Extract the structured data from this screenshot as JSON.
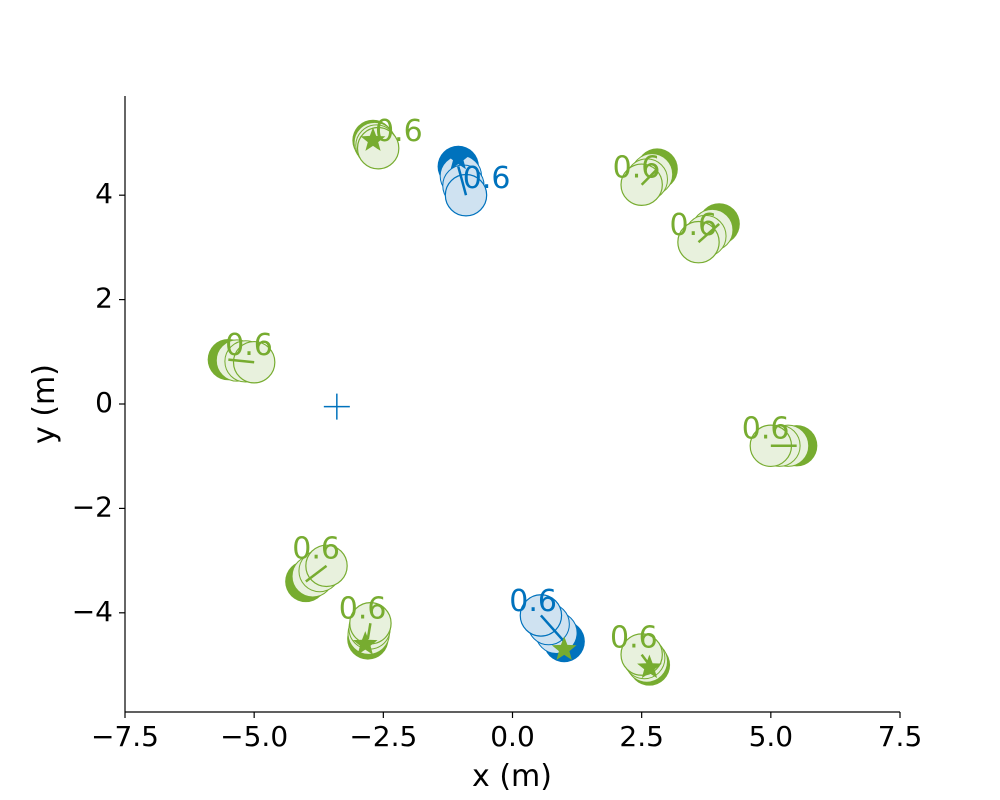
{
  "chart_data": {
    "type": "scatter",
    "xlabel": "x (m)",
    "ylabel": "y (m)",
    "xlim": [
      -7.5,
      7.5
    ],
    "ylim": [
      -5.9,
      5.9
    ],
    "x_ticks": [
      -7.5,
      -5.0,
      -2.5,
      0.0,
      2.5,
      5.0,
      7.5
    ],
    "x_tick_labels": [
      "−7.5",
      "−5.0",
      "−2.5",
      "0.0",
      "2.5",
      "5.0",
      "7.5"
    ],
    "y_ticks": [
      -4,
      -2,
      0,
      2,
      4
    ],
    "y_tick_labels": [
      "−4",
      "−2",
      "0",
      "2",
      "4"
    ],
    "grid": false,
    "agent_radius": 0.4,
    "colors": {
      "green": "#77ac30",
      "green_light": "#e8f1dd",
      "blue": "#0072bd",
      "blue_light": "#cfe2f1"
    },
    "crosshair": {
      "x": -3.4,
      "y": -0.05,
      "color": "#0072bd"
    },
    "agents": [
      {
        "color": "green",
        "goal": [
          -2.7,
          5.05
        ],
        "start": [
          -2.7,
          5.05
        ],
        "pos": [
          -2.6,
          4.9
        ],
        "label": "0.6",
        "label_pos": [
          -2.2,
          5.2
        ]
      },
      {
        "color": "blue",
        "goal": [
          -1.05,
          4.7
        ],
        "start": [
          -1.05,
          4.55
        ],
        "pos": [
          -0.9,
          4.0
        ],
        "label": "0.6",
        "label_pos": [
          -0.5,
          4.3
        ]
      },
      {
        "color": "green",
        "goal": null,
        "start": [
          2.8,
          4.5
        ],
        "pos": [
          2.5,
          4.2
        ],
        "label": "0.6",
        "label_pos": [
          2.4,
          4.5
        ]
      },
      {
        "color": "green",
        "goal": null,
        "start": [
          4.0,
          3.45
        ],
        "pos": [
          3.6,
          3.1
        ],
        "label": "0.6",
        "label_pos": [
          3.5,
          3.4
        ]
      },
      {
        "color": "green",
        "goal": null,
        "start": [
          -5.5,
          0.85
        ],
        "pos": [
          -5.0,
          0.8
        ],
        "label": "0.6",
        "label_pos": [
          -5.1,
          1.1
        ]
      },
      {
        "color": "green",
        "goal": null,
        "start": [
          5.5,
          -0.8
        ],
        "pos": [
          5.0,
          -0.8
        ],
        "label": "0.6",
        "label_pos": [
          4.9,
          -0.5
        ]
      },
      {
        "color": "green",
        "goal": null,
        "start": [
          -4.0,
          -3.4
        ],
        "pos": [
          -3.6,
          -3.1
        ],
        "label": "0.6",
        "label_pos": [
          -3.8,
          -2.8
        ]
      },
      {
        "color": "green",
        "goal": [
          -2.85,
          -4.6
        ],
        "start": [
          -2.8,
          -4.5
        ],
        "pos": [
          -2.75,
          -4.2
        ],
        "label": "0.6",
        "label_pos": [
          -2.9,
          -3.95
        ]
      },
      {
        "color": "blue",
        "goal": null,
        "start": [
          1.0,
          -4.55
        ],
        "pos": [
          0.55,
          -4.05
        ],
        "label": "0.6",
        "label_pos": [
          0.4,
          -3.8
        ]
      },
      {
        "color": "green",
        "goal": [
          1.0,
          -4.7
        ],
        "start": null,
        "pos": null,
        "label": "",
        "label_pos": null
      },
      {
        "color": "green",
        "goal": [
          2.65,
          -5.05
        ],
        "start": [
          2.65,
          -5.0
        ],
        "pos": [
          2.5,
          -4.8
        ],
        "label": "0.6",
        "label_pos": [
          2.35,
          -4.5
        ]
      }
    ]
  }
}
